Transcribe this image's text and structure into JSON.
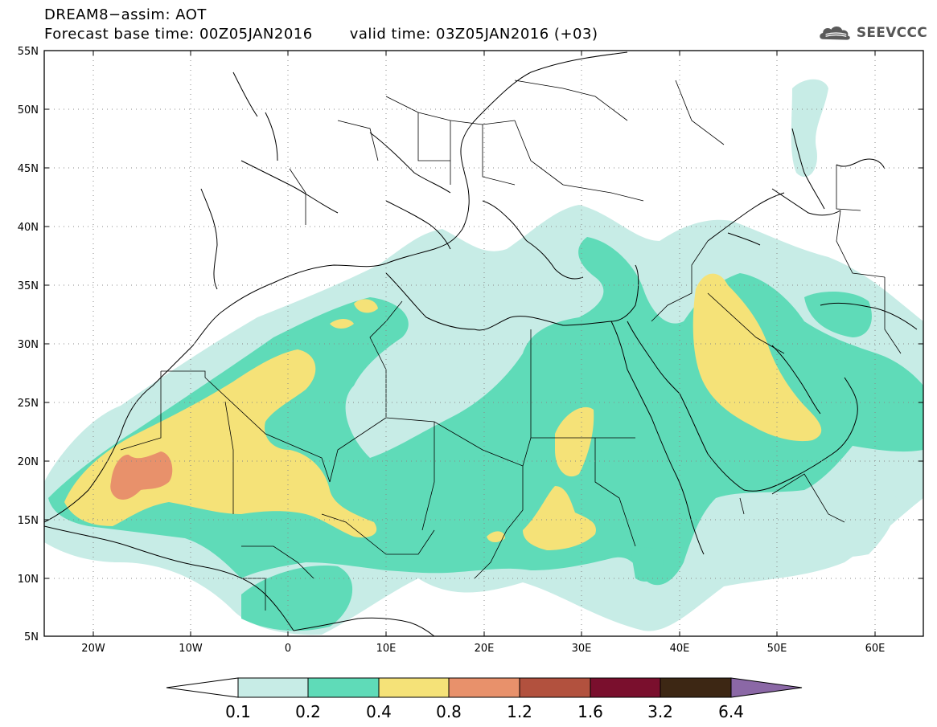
{
  "header": {
    "title": "DREAM8−assim: AOT",
    "base_time": "Forecast base time: 00Z05JAN2016",
    "valid_time": "valid time: 03Z05JAN2016 (+03)"
  },
  "logo": {
    "text": "SEEVCCC",
    "icon": "cloud-logo-icon"
  },
  "map": {
    "lon_range": [
      -25,
      65
    ],
    "lat_range": [
      5,
      55
    ],
    "lat_ticks": [
      "5N",
      "10N",
      "15N",
      "20N",
      "25N",
      "30N",
      "35N",
      "40N",
      "45N",
      "50N",
      "55N"
    ],
    "lon_ticks": [
      "20W",
      "10W",
      "0",
      "10E",
      "20E",
      "30E",
      "40E",
      "50E",
      "60E"
    ],
    "grid": "dotted"
  },
  "colorbar": {
    "labels": [
      "0.1",
      "0.2",
      "0.4",
      "0.8",
      "1.2",
      "1.6",
      "3.2",
      "6.4"
    ],
    "colors": [
      "#ffffff",
      "#c7ece6",
      "#5fdbb8",
      "#f5e278",
      "#e8916b",
      "#b2513e",
      "#7a0f2d",
      "#3d2714",
      "#8b68a6"
    ]
  },
  "colors": {
    "level_0_1": "#c7ece6",
    "level_0_2": "#5fdbb8",
    "level_0_4": "#f5e278",
    "level_0_8": "#e8916b",
    "level_1_2": "#b2513e"
  }
}
